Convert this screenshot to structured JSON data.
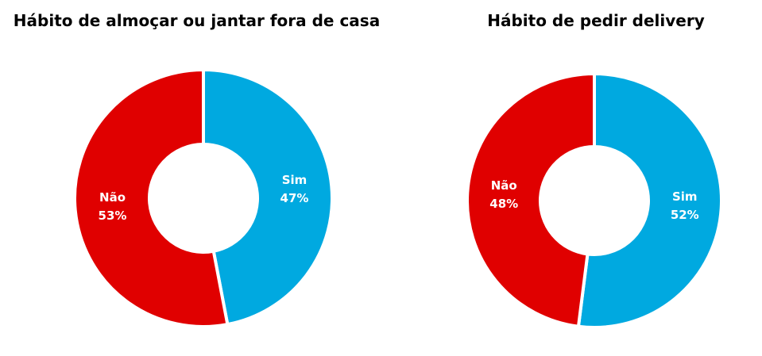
{
  "chart_data": [
    {
      "type": "pie",
      "title": "Hábito de almoçar ou jantar fora de casa",
      "categories": [
        "Sim",
        "Não"
      ],
      "values": [
        47,
        53
      ],
      "value_labels": [
        "47%",
        "53%"
      ],
      "colors": [
        "#00A9E0",
        "#E00000"
      ],
      "donut": true,
      "legend": "none"
    },
    {
      "type": "pie",
      "title": "Hábito de pedir delivery",
      "categories": [
        "Sim",
        "Não"
      ],
      "values": [
        52,
        48
      ],
      "value_labels": [
        "52%",
        "48%"
      ],
      "colors": [
        "#00A9E0",
        "#E00000"
      ],
      "donut": true,
      "legend": "none"
    }
  ]
}
